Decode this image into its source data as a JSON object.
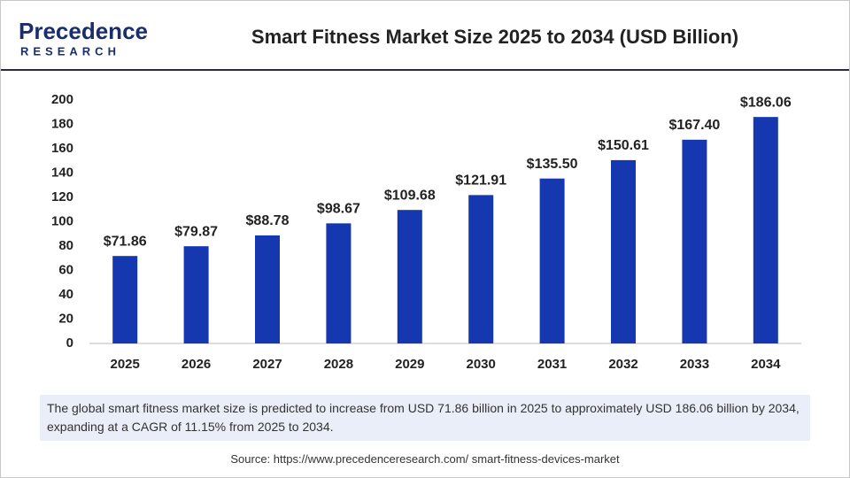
{
  "logo": {
    "name": "Precedence",
    "tagline": "RESEARCH"
  },
  "chart_data": {
    "type": "bar",
    "title": "Smart Fitness Market Size 2025 to 2034 (USD Billion)",
    "categories": [
      "2025",
      "2026",
      "2027",
      "2028",
      "2029",
      "2030",
      "2031",
      "2032",
      "2033",
      "2034"
    ],
    "values": [
      71.86,
      79.87,
      88.78,
      98.67,
      109.68,
      121.91,
      135.5,
      150.61,
      167.4,
      186.06
    ],
    "value_labels": [
      "$71.86",
      "$79.87",
      "$88.78",
      "$98.67",
      "$109.68",
      "$121.91",
      "$135.50",
      "$150.61",
      "$167.40",
      "$186.06"
    ],
    "color": "#1537b0",
    "ylim": [
      0,
      200
    ],
    "yticks": [
      0,
      20,
      40,
      60,
      80,
      100,
      120,
      140,
      160,
      180,
      200
    ],
    "grid": false
  },
  "description": "The global smart fitness market size is predicted to increase from USD 71.86 billion in 2025 to approximately USD 186.06 billion by 2034, expanding at a CAGR of 11.15% from 2025 to 2034.",
  "source": "Source: https://www.precedenceresearch.com/ smart-fitness-devices-market"
}
